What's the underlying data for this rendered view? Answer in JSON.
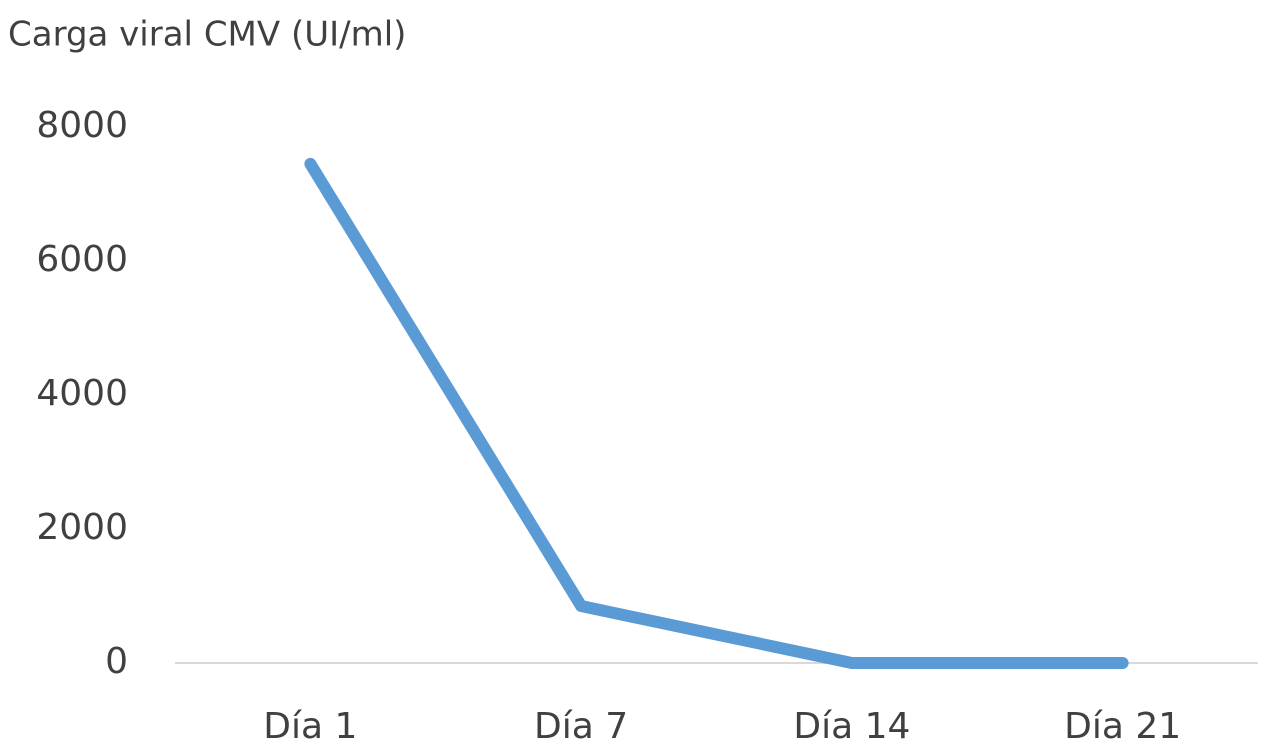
{
  "chart_data": {
    "type": "line",
    "title": "Carga viral CMV (UI/ml)",
    "categories": [
      "Día 1",
      "Día 7",
      "Día 14",
      "Día 21"
    ],
    "series": [
      {
        "name": "Carga viral CMV",
        "color": "#5b9bd5",
        "values": [
          7450,
          850,
          0,
          0
        ]
      }
    ],
    "ylim": [
      0,
      8000
    ],
    "yticks": [
      0,
      2000,
      4000,
      6000,
      8000
    ],
    "grid": false,
    "legend": false
  }
}
